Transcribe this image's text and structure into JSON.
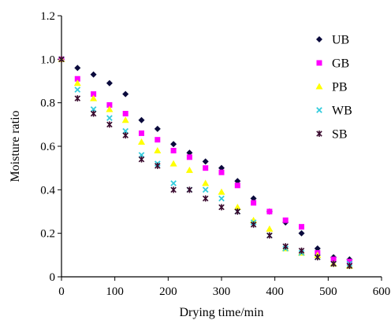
{
  "chart_data": {
    "type": "scatter",
    "xlabel": "Drying time/min",
    "ylabel": "Moisture ratio",
    "xlim": [
      0,
      600
    ],
    "ylim": [
      0,
      1.2
    ],
    "xticks": [
      "0",
      "100",
      "200",
      "300",
      "400",
      "500",
      "600"
    ],
    "yticks": [
      "0",
      "0.2",
      "0.4",
      "0.6",
      "0.8",
      "1.0",
      "1.2"
    ],
    "grid": false,
    "legend_position": "top-right",
    "series": [
      {
        "name": "UB",
        "marker": "diamond",
        "color": "#0a0a3c",
        "x": [
          0,
          30,
          60,
          90,
          120,
          150,
          180,
          210,
          240,
          270,
          300,
          330,
          360,
          390,
          420,
          450,
          480,
          510,
          540
        ],
        "y": [
          1.0,
          0.96,
          0.93,
          0.89,
          0.84,
          0.72,
          0.68,
          0.61,
          0.57,
          0.53,
          0.5,
          0.44,
          0.36,
          0.3,
          0.25,
          0.2,
          0.13,
          0.09,
          0.08
        ]
      },
      {
        "name": "GB",
        "marker": "square",
        "color": "#ff00ff",
        "x": [
          0,
          30,
          60,
          90,
          120,
          150,
          180,
          210,
          240,
          270,
          300,
          330,
          360,
          390,
          420,
          450,
          480,
          510,
          540
        ],
        "y": [
          1.0,
          0.91,
          0.84,
          0.79,
          0.75,
          0.66,
          0.63,
          0.58,
          0.55,
          0.5,
          0.48,
          0.42,
          0.34,
          0.3,
          0.26,
          0.23,
          0.11,
          0.08,
          0.07
        ]
      },
      {
        "name": "PB",
        "marker": "triangle",
        "color": "#ffff00",
        "x": [
          0,
          30,
          60,
          90,
          120,
          150,
          180,
          210,
          240,
          270,
          300,
          330,
          360,
          390,
          420,
          450,
          480,
          510,
          540
        ],
        "y": [
          1.0,
          0.89,
          0.82,
          0.77,
          0.72,
          0.62,
          0.58,
          0.52,
          0.49,
          0.43,
          0.39,
          0.32,
          0.26,
          0.22,
          0.13,
          0.11,
          0.1,
          0.06,
          0.05
        ]
      },
      {
        "name": "WB",
        "marker": "x",
        "color": "#33ccdd",
        "x": [
          0,
          30,
          60,
          90,
          120,
          150,
          180,
          210,
          240,
          270,
          300,
          330,
          360,
          390,
          420,
          450,
          480,
          510,
          540
        ],
        "y": [
          1.0,
          0.86,
          0.77,
          0.73,
          0.67,
          0.56,
          0.52,
          0.43,
          0.4,
          0.4,
          0.36,
          0.3,
          0.25,
          0.19,
          0.13,
          0.11,
          0.09,
          0.06,
          0.06
        ]
      },
      {
        "name": "SB",
        "marker": "star",
        "color": "#3a0a2e",
        "x": [
          0,
          30,
          60,
          90,
          120,
          150,
          180,
          210,
          240,
          270,
          300,
          330,
          360,
          390,
          420,
          450,
          480,
          510,
          540
        ],
        "y": [
          1.0,
          0.82,
          0.75,
          0.7,
          0.65,
          0.54,
          0.51,
          0.4,
          0.4,
          0.36,
          0.32,
          0.3,
          0.24,
          0.19,
          0.14,
          0.12,
          0.09,
          0.06,
          0.05
        ]
      }
    ]
  }
}
